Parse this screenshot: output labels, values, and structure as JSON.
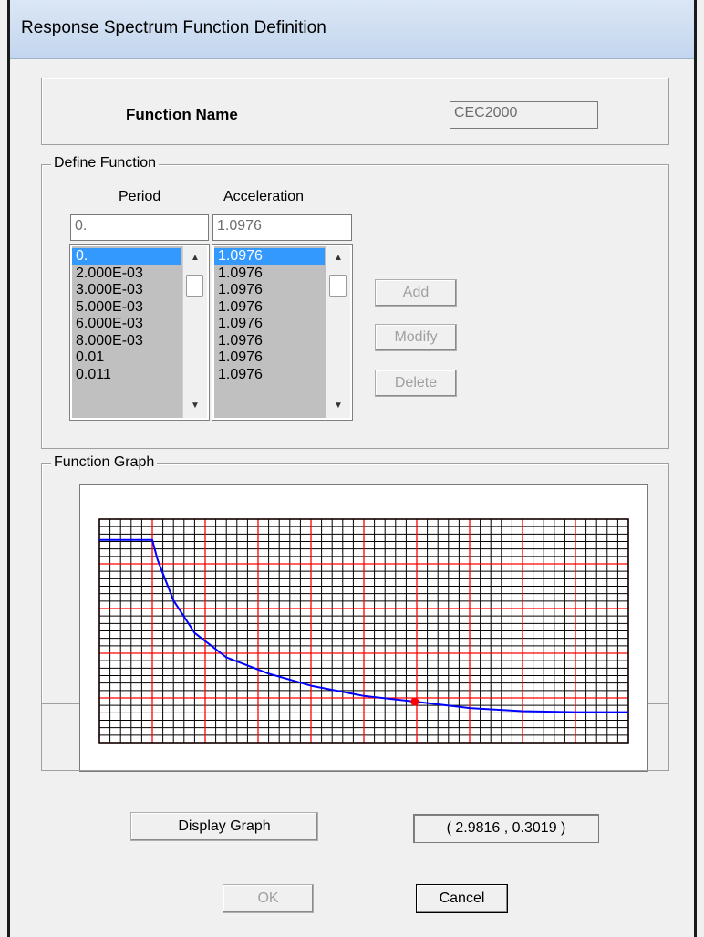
{
  "window": {
    "title": "Response Spectrum  Function Definition"
  },
  "function_name": {
    "label": "Function Name",
    "value": "CEC2000"
  },
  "define_function": {
    "legend": "Define Function",
    "period_header": "Period",
    "acceleration_header": "Acceleration",
    "period_input": "0.",
    "acceleration_input": "1.0976",
    "periods": [
      "0.",
      "2.000E-03",
      "3.000E-03",
      "5.000E-03",
      "6.000E-03",
      "8.000E-03",
      "0.01",
      "0.011"
    ],
    "accelerations": [
      "1.0976",
      "1.0976",
      "1.0976",
      "1.0976",
      "1.0976",
      "1.0976",
      "1.0976",
      "1.0976"
    ],
    "add_label": "Add",
    "modify_label": "Modify",
    "delete_label": "Delete"
  },
  "function_graph": {
    "legend": "Function Graph",
    "display_graph_label": "Display Graph",
    "coordinates": "( 2.9816  ,  0.3019 )"
  },
  "chart_data": {
    "type": "line",
    "x": [
      0.0,
      0.5,
      0.55,
      0.7,
      0.9,
      1.2,
      1.6,
      2.0,
      2.5,
      2.9816,
      3.5,
      4.0,
      4.5,
      5.0
    ],
    "y": [
      1.0976,
      1.0976,
      1.0,
      0.8,
      0.64,
      0.52,
      0.44,
      0.38,
      0.33,
      0.3019,
      0.27,
      0.255,
      0.25,
      0.25
    ],
    "xlim": [
      0,
      5
    ],
    "ylim": [
      0.1,
      1.2
    ],
    "grid": true,
    "highlight_point": {
      "x": 2.9816,
      "y": 0.3019
    },
    "line_color": "#0000ff",
    "major_grid_color": "#ff0000",
    "minor_grid_color": "#000000",
    "point_color": "#ff0000"
  },
  "footer": {
    "ok_label": "OK",
    "cancel_label": "Cancel"
  }
}
